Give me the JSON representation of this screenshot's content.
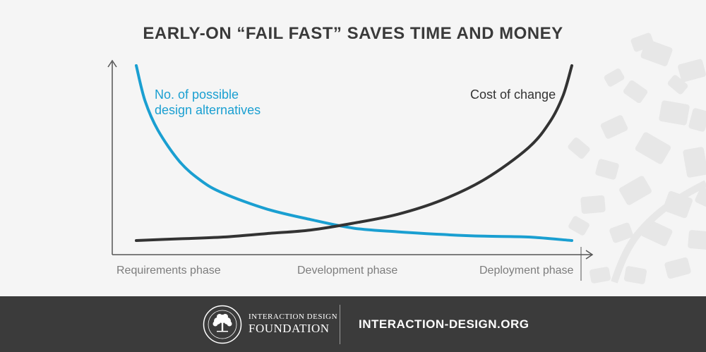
{
  "chart_data": {
    "type": "line",
    "title": "EARLY-ON “FAIL FAST” SAVES TIME AND MONEY",
    "xlabel": "",
    "ylabel": "",
    "categories": [
      "Requirements phase",
      "Development phase",
      "Deployment phase"
    ],
    "x_range": [
      0,
      1
    ],
    "y_range": [
      0,
      1
    ],
    "grid": false,
    "legend": "inline labels",
    "series": [
      {
        "name": "No. of possible design alternatives",
        "color": "#1a9fd1",
        "label_lines": [
          "No. of possible",
          "design alternatives"
        ],
        "x": [
          0.0,
          0.02,
          0.05,
          0.1,
          0.15,
          0.2,
          0.3,
          0.4,
          0.5,
          0.6,
          0.7,
          0.8,
          0.9,
          1.0
        ],
        "y": [
          1.0,
          0.8,
          0.63,
          0.45,
          0.34,
          0.27,
          0.18,
          0.12,
          0.07,
          0.05,
          0.035,
          0.025,
          0.02,
          0.0
        ]
      },
      {
        "name": "Cost of change",
        "color": "#333333",
        "label_lines": [
          "Cost of change"
        ],
        "x": [
          0.0,
          0.1,
          0.2,
          0.3,
          0.4,
          0.5,
          0.6,
          0.7,
          0.8,
          0.9,
          0.95,
          0.98,
          1.0
        ],
        "y": [
          0.0,
          0.01,
          0.02,
          0.04,
          0.06,
          0.1,
          0.15,
          0.23,
          0.35,
          0.53,
          0.68,
          0.83,
          1.0
        ]
      }
    ]
  },
  "footer": {
    "brand_line1": "INTERACTION DESIGN",
    "brand_line2": "FOUNDATION",
    "site": "INTERACTION-DESIGN.ORG"
  }
}
